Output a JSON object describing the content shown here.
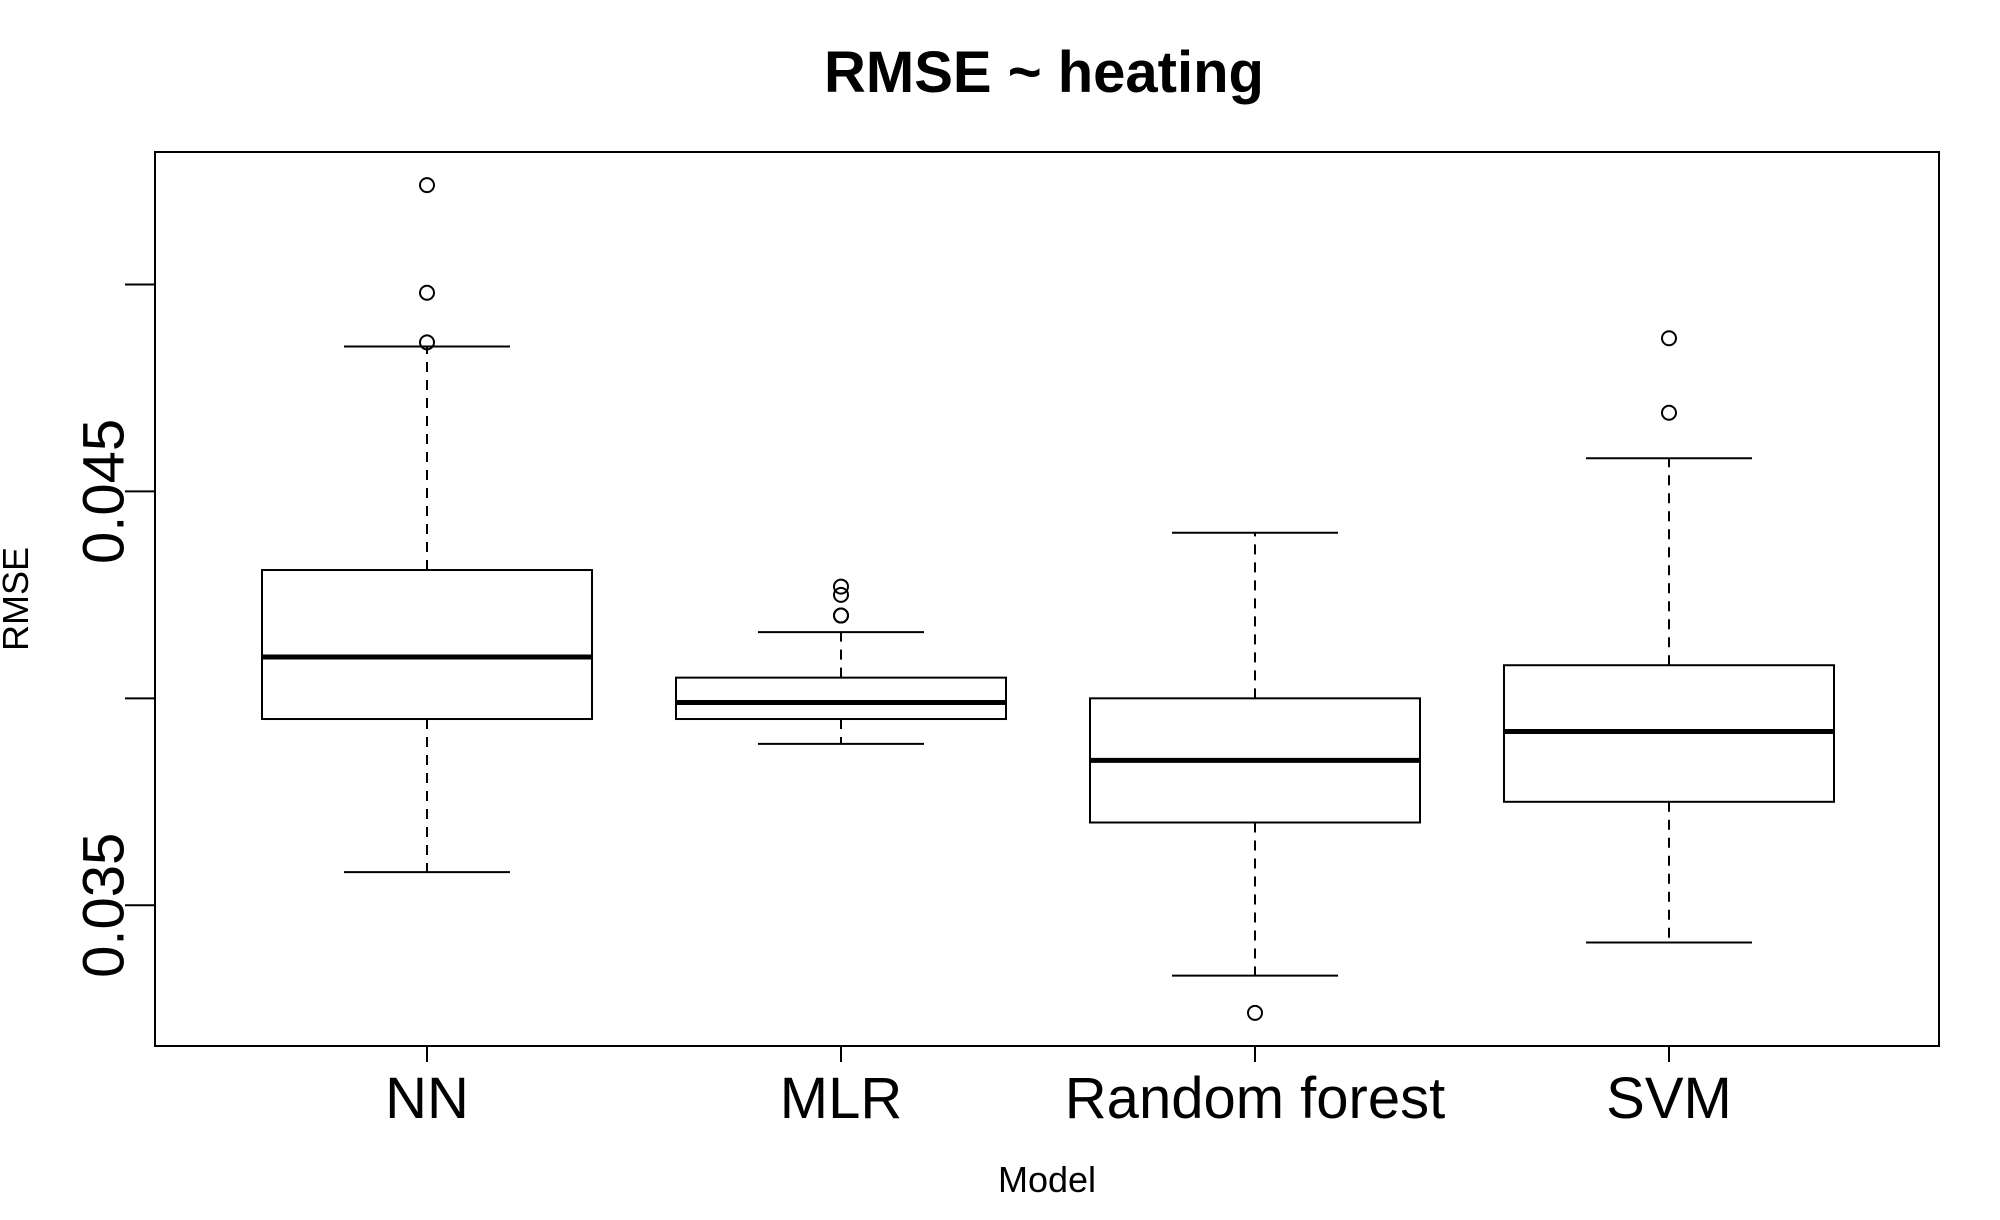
{
  "chart_data": {
    "type": "boxplot",
    "title": "RMSE ~ heating",
    "xlabel": "Model",
    "ylabel": "RMSE",
    "ylim": [
      0.0316,
      0.0532
    ],
    "y_ticks": [
      0.035,
      0.04,
      0.045,
      0.05
    ],
    "y_tick_labels": [
      "0.035",
      "",
      "0.045",
      ""
    ],
    "grid": false,
    "categories": [
      "NN",
      "MLR",
      "Random forest",
      "SVM"
    ],
    "boxes": [
      {
        "category": "NN",
        "whisker_low": 0.0358,
        "q1": 0.0395,
        "median": 0.041,
        "q3": 0.0431,
        "whisker_high": 0.0485,
        "outliers": [
          0.0486,
          0.0498,
          0.0524
        ]
      },
      {
        "category": "MLR",
        "whisker_low": 0.0389,
        "q1": 0.0395,
        "median": 0.0399,
        "q3": 0.0405,
        "whisker_high": 0.0416,
        "outliers": [
          0.042,
          0.042,
          0.0425,
          0.0427
        ]
      },
      {
        "category": "Random forest",
        "whisker_low": 0.0333,
        "q1": 0.037,
        "median": 0.0385,
        "q3": 0.04,
        "whisker_high": 0.044,
        "outliers": [
          0.0324
        ]
      },
      {
        "category": "SVM",
        "whisker_low": 0.0341,
        "q1": 0.0375,
        "median": 0.0392,
        "q3": 0.0408,
        "whisker_high": 0.0458,
        "outliers": [
          0.0469,
          0.0487
        ]
      }
    ]
  }
}
